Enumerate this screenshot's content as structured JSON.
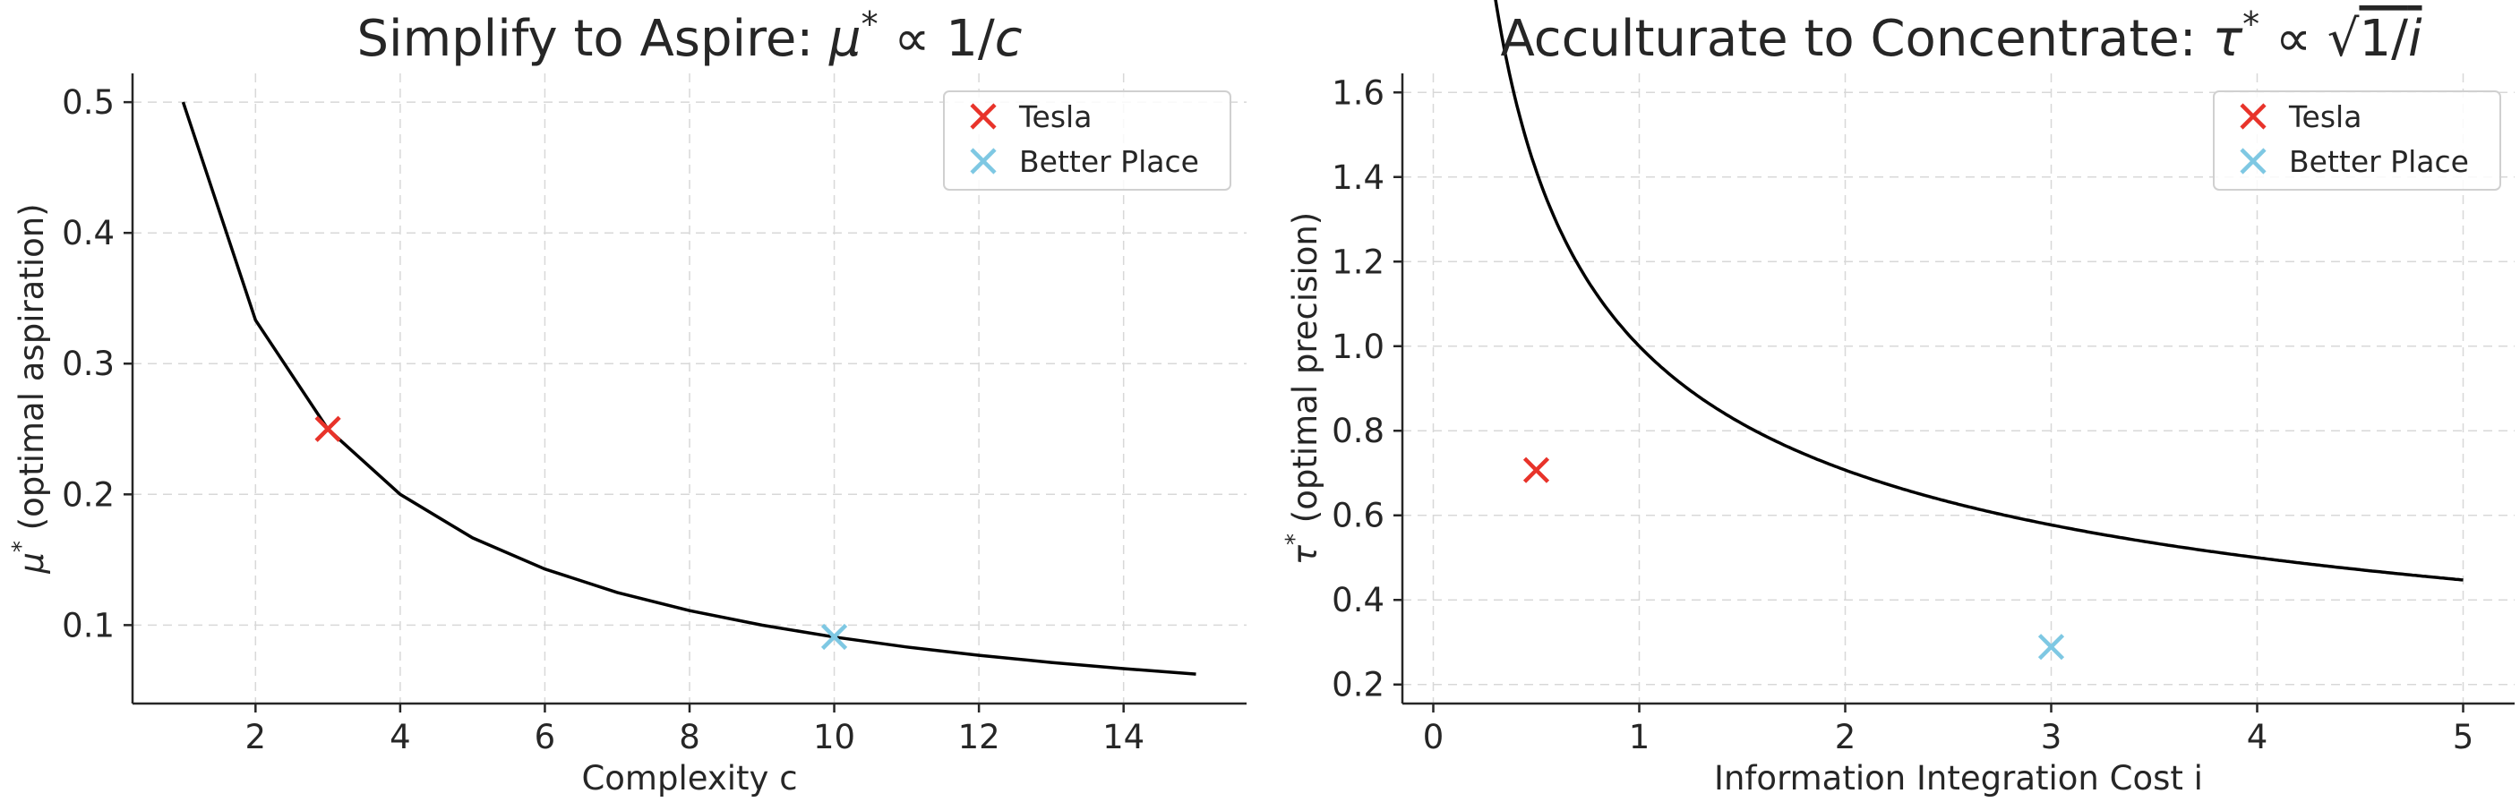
{
  "chart_data": [
    {
      "type": "line",
      "title": "Simplify to Aspire: μ* ∝ 1/c",
      "title_parts": {
        "text": "Simplify to Aspire: ",
        "sym": "μ",
        "sup": "*",
        "rel": " ∝ 1/",
        "var": "c"
      },
      "xlabel": "Complexity c",
      "ylabel": "μ* (optimal aspiration)",
      "ylabel_parts": {
        "sym": "μ",
        "sup": "*",
        "rest": " (optimal aspiration)"
      },
      "xlim": [
        0.3,
        15.7
      ],
      "ylim": [
        0.04,
        0.522
      ],
      "xticks": [
        2,
        4,
        6,
        8,
        10,
        12,
        14
      ],
      "yticks": [
        0.1,
        0.2,
        0.3,
        0.4,
        0.5
      ],
      "ytick_labels": [
        "0.1",
        "0.2",
        "0.3",
        "0.4",
        "0.5"
      ],
      "grid": true,
      "legend_position": "top-right",
      "series": [
        {
          "x": [
            1,
            2,
            3,
            4,
            5,
            6,
            7,
            8,
            9,
            10,
            11,
            12,
            13,
            14,
            15
          ],
          "y": [
            0.5,
            0.3333,
            0.25,
            0.2,
            0.1667,
            0.1429,
            0.125,
            0.1111,
            0.1,
            0.0909,
            0.0833,
            0.0769,
            0.0714,
            0.0667,
            0.0625
          ],
          "color": "#000000"
        }
      ],
      "markers": [
        {
          "name": "Tesla",
          "x": 3,
          "y": 0.25,
          "color": "#e8332a"
        },
        {
          "name": "Better Place",
          "x": 10,
          "y": 0.091,
          "color": "#7ec8e3"
        }
      ]
    },
    {
      "type": "line",
      "title": "Acculturate to Concentrate: τ* ∝ √(1/i)",
      "title_parts": {
        "text": "Acculturate to Concentrate:",
        "sym": "τ",
        "sup": "*",
        "rel": " ∝ ",
        "rad": "1/",
        "var": "i"
      },
      "xlabel": "Information Integration Cost i",
      "ylabel": "τ* (optimal precision)",
      "ylabel_parts": {
        "sym": "τ",
        "sup": "*",
        "rest": " (optimal precision)"
      },
      "xlim": [
        -0.15,
        5.25
      ],
      "ylim": [
        0.155,
        1.645
      ],
      "xticks": [
        0,
        1,
        2,
        3,
        4,
        5
      ],
      "yticks": [
        0.2,
        0.4,
        0.6,
        0.8,
        1.0,
        1.2,
        1.4,
        1.6
      ],
      "ytick_labels": [
        "0.2",
        "0.4",
        "0.6",
        "0.8",
        "1.0",
        "1.2",
        "1.4",
        "1.6"
      ],
      "grid": true,
      "legend_position": "top-right",
      "series": [
        {
          "function": "sqrt(1/i)",
          "x_range": [
            0.1,
            5.0
          ],
          "color": "#000000"
        }
      ],
      "markers": [
        {
          "name": "Tesla",
          "x": 0.5,
          "y": 0.707,
          "color": "#e8332a"
        },
        {
          "name": "Better Place",
          "x": 3,
          "y": 0.289,
          "color": "#7ec8e3"
        }
      ]
    }
  ]
}
